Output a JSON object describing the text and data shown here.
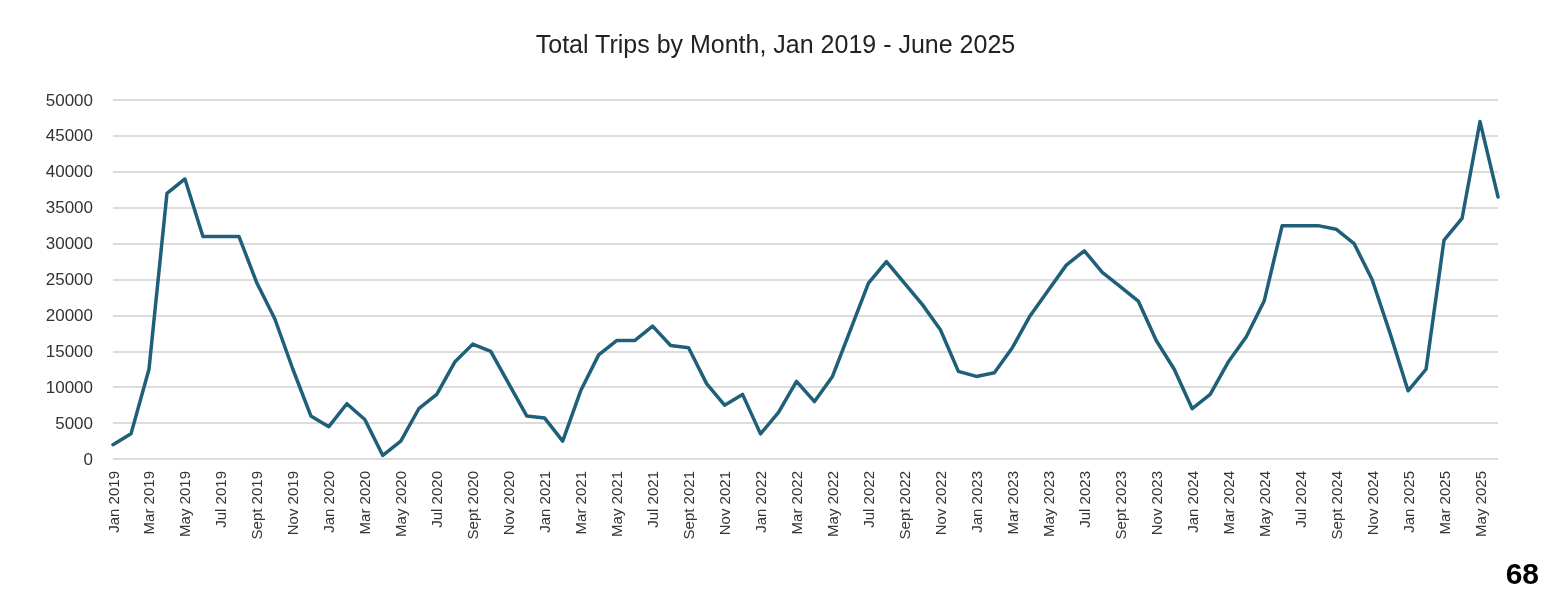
{
  "chart_data": {
    "type": "line",
    "title": "Total Trips by Month, Jan 2019 - June 2025",
    "categories": [
      "Jan 2019",
      null,
      "Mar 2019",
      null,
      "May 2019",
      null,
      "Jul 2019",
      null,
      "Sept 2019",
      null,
      "Nov 2019",
      null,
      "Jan 2020",
      null,
      "Mar 2020",
      null,
      "May 2020",
      null,
      "Jul 2020",
      null,
      "Sept 2020",
      null,
      "Nov 2020",
      null,
      "Jan 2021",
      null,
      "Mar 2021",
      null,
      "May 2021",
      null,
      "Jul 2021",
      null,
      "Sept 2021",
      null,
      "Nov 2021",
      null,
      "Jan 2022",
      null,
      "Mar 2022",
      null,
      "May 2022",
      null,
      "Jul 2022",
      null,
      "Sept 2022",
      null,
      "Nov 2022",
      null,
      "Jan 2023",
      null,
      "Mar 2023",
      null,
      "May 2023",
      null,
      "Jul 2023",
      null,
      "Sept 2023",
      null,
      "Nov 2023",
      null,
      "Jan 2024",
      null,
      "Mar 2024",
      null,
      "May 2024",
      null,
      "Jul 2024",
      null,
      "Sept 2024",
      null,
      "Nov 2024",
      null,
      "Jan 2025",
      null,
      "Mar 2025",
      null,
      "May 2025",
      null
    ],
    "series": [
      {
        "color": "#1f5f7a",
        "values": [
          2000,
          3500,
          12500,
          37000,
          39000,
          31000,
          31000,
          31000,
          24500,
          19500,
          12500,
          6000,
          4500,
          7700,
          5500,
          500,
          2500,
          7000,
          9000,
          13500,
          16000,
          15000,
          10500,
          6000,
          5700,
          2500,
          9500,
          14500,
          16500,
          16500,
          18500,
          15800,
          15500,
          10500,
          7500,
          9000,
          3500,
          6500,
          10800,
          8000,
          11500,
          18000,
          24500,
          27500,
          24500,
          21500,
          18000,
          12200,
          11500,
          12000,
          15500,
          20000,
          23500,
          27000,
          29000,
          26000,
          24000,
          22000,
          16500,
          12500,
          7000,
          9000,
          13500,
          17000,
          22000,
          32500,
          32500,
          32500,
          32000,
          30000,
          25000,
          17500,
          9500,
          12500,
          30500,
          33500,
          47000,
          36500
        ]
      }
    ],
    "ylim": [
      0,
      50000
    ],
    "yticks": [
      0,
      5000,
      10000,
      15000,
      20000,
      25000,
      30000,
      35000,
      40000,
      45000,
      50000
    ],
    "grid": "y",
    "marker": "none",
    "line_style": "solid",
    "annotations": [
      "68"
    ]
  }
}
